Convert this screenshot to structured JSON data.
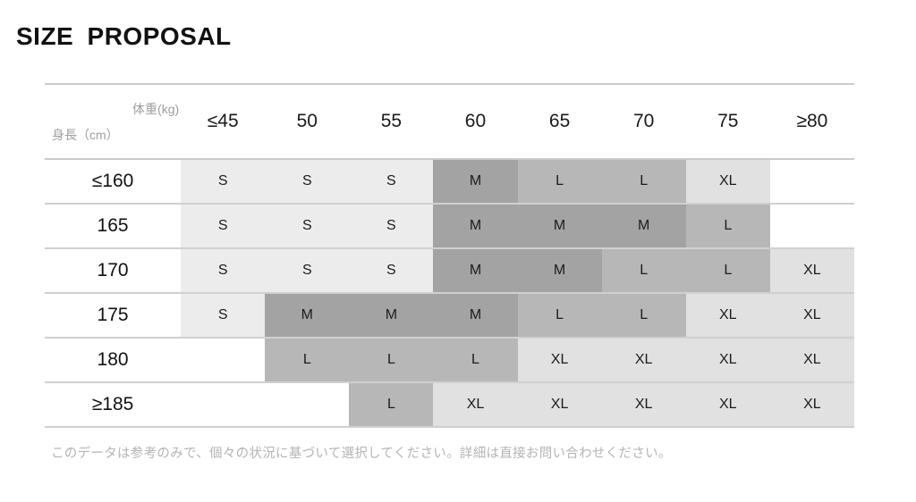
{
  "page": {
    "title": "SIZE PROPOSAL",
    "footnote": "このデータは参考のみで、個々の状況に基づいて選択してください。詳細は直接お問い合わせください。"
  },
  "chart_data": {
    "type": "table",
    "title": "SIZE PROPOSAL",
    "corner_labels": {
      "top": "体重(kg)",
      "bottom": "身長（cm）"
    },
    "columns": [
      "≤45",
      "50",
      "55",
      "60",
      "65",
      "70",
      "75",
      "≥80"
    ],
    "rows": [
      {
        "label": "≤160",
        "values": [
          "S",
          "S",
          "S",
          "M",
          "L",
          "L",
          "XL",
          ""
        ]
      },
      {
        "label": "165",
        "values": [
          "S",
          "S",
          "S",
          "M",
          "M",
          "M",
          "L",
          ""
        ]
      },
      {
        "label": "170",
        "values": [
          "S",
          "S",
          "S",
          "M",
          "M",
          "L",
          "L",
          "XL"
        ]
      },
      {
        "label": "175",
        "values": [
          "S",
          "M",
          "M",
          "M",
          "L",
          "L",
          "XL",
          "XL"
        ]
      },
      {
        "label": "180",
        "values": [
          "",
          "L",
          "L",
          "L",
          "XL",
          "XL",
          "XL",
          "XL"
        ]
      },
      {
        "label": "≥185",
        "values": [
          "",
          "",
          "L",
          "XL",
          "XL",
          "XL",
          "XL",
          "XL"
        ]
      }
    ],
    "cell_colors": {
      "S": "#ececec",
      "M": "#a3a3a3",
      "L": "#b7b7b7",
      "XL": "#e1e1e1"
    }
  }
}
